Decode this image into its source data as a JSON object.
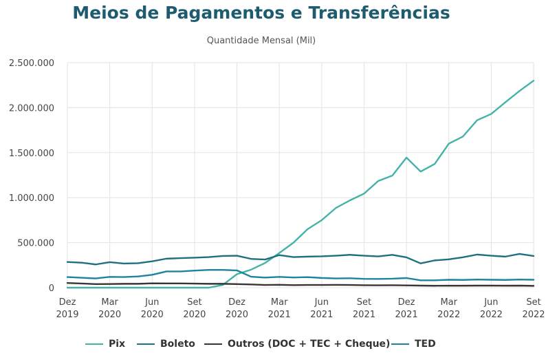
{
  "chart_data": {
    "type": "line",
    "title": "Meios de Pagamentos e Transferências",
    "subtitle": "Quantidade Mensal (Mil)",
    "ylim": [
      0,
      2500000
    ],
    "yticks": [
      {
        "value": 0,
        "label": "0"
      },
      {
        "value": 500000,
        "label": "500.000"
      },
      {
        "value": 1000000,
        "label": "1.000.000"
      },
      {
        "value": 1500000,
        "label": "1.500.000"
      },
      {
        "value": 2000000,
        "label": "2.000.000"
      },
      {
        "value": 2500000,
        "label": "2.500.000"
      }
    ],
    "x": [
      "2019-12",
      "2020-01",
      "2020-02",
      "2020-03",
      "2020-04",
      "2020-05",
      "2020-06",
      "2020-07",
      "2020-08",
      "2020-09",
      "2020-10",
      "2020-11",
      "2020-12",
      "2021-01",
      "2021-02",
      "2021-03",
      "2021-04",
      "2021-05",
      "2021-06",
      "2021-07",
      "2021-08",
      "2021-09",
      "2021-10",
      "2021-11",
      "2021-12",
      "2022-01",
      "2022-02",
      "2022-03",
      "2022-04",
      "2022-05",
      "2022-06",
      "2022-07",
      "2022-08",
      "2022-09"
    ],
    "xticks": [
      {
        "index": 0,
        "line1": "Dez",
        "line2": "2019"
      },
      {
        "index": 3,
        "line1": "Mar",
        "line2": "2020"
      },
      {
        "index": 6,
        "line1": "Jun",
        "line2": "2020"
      },
      {
        "index": 9,
        "line1": "Set",
        "line2": "2020"
      },
      {
        "index": 12,
        "line1": "Dez",
        "line2": "2020"
      },
      {
        "index": 15,
        "line1": "Mar",
        "line2": "2021"
      },
      {
        "index": 18,
        "line1": "Jun",
        "line2": "2021"
      },
      {
        "index": 21,
        "line1": "Set",
        "line2": "2021"
      },
      {
        "index": 24,
        "line1": "Dez",
        "line2": "2021"
      },
      {
        "index": 27,
        "line1": "Mar",
        "line2": "2022"
      },
      {
        "index": 30,
        "line1": "Jun",
        "line2": "2022"
      },
      {
        "index": 33,
        "line1": "Set",
        "line2": "2022"
      }
    ],
    "grid": true,
    "legend_position": "bottom",
    "series": [
      {
        "name": "Pix",
        "color": "#43b3a6",
        "values": [
          0,
          0,
          0,
          0,
          0,
          0,
          0,
          0,
          0,
          0,
          0,
          30000,
          150000,
          200000,
          275000,
          385000,
          500000,
          650000,
          750000,
          885000,
          970000,
          1045000,
          1185000,
          1245000,
          1445000,
          1290000,
          1375000,
          1600000,
          1680000,
          1860000,
          1930000,
          2060000,
          2185000,
          2300000
        ]
      },
      {
        "name": "Boleto",
        "color": "#1d7082",
        "values": [
          285000,
          278000,
          258000,
          283000,
          268000,
          272000,
          293000,
          322000,
          328000,
          333000,
          340000,
          352000,
          355000,
          320000,
          313000,
          362000,
          340000,
          345000,
          348000,
          355000,
          365000,
          355000,
          347000,
          365000,
          337000,
          270000,
          303000,
          315000,
          338000,
          368000,
          355000,
          345000,
          375000,
          352000
        ]
      },
      {
        "name": "Outros (DOC + TEC + Cheque)",
        "color": "#3a3436",
        "values": [
          52000,
          46000,
          40000,
          41000,
          43000,
          43000,
          48000,
          47000,
          47000,
          45000,
          43000,
          43000,
          40000,
          36000,
          30000,
          32000,
          28000,
          30000,
          30000,
          31000,
          30000,
          27000,
          26000,
          27000,
          25000,
          23000,
          21000,
          22000,
          22000,
          23000,
          23000,
          22000,
          23000,
          20000
        ]
      },
      {
        "name": "TED",
        "color": "#1c83a0",
        "values": [
          118000,
          110000,
          103000,
          120000,
          118000,
          125000,
          143000,
          180000,
          180000,
          190000,
          197000,
          197000,
          192000,
          122000,
          112000,
          120000,
          113000,
          117000,
          108000,
          103000,
          105000,
          98000,
          97000,
          100000,
          107000,
          82000,
          82000,
          88000,
          86000,
          90000,
          88000,
          86000,
          90000,
          88000
        ]
      }
    ]
  }
}
